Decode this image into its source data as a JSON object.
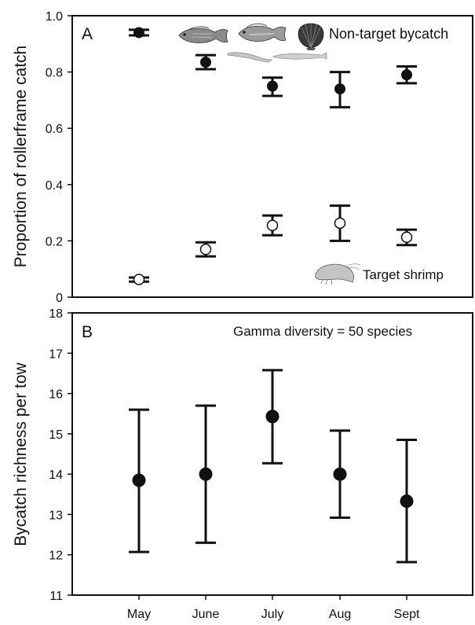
{
  "chart_data": [
    {
      "type": "scatter",
      "panel_label": "A",
      "ylabel": "Proportion of rollerframe catch",
      "ylim": [
        0,
        1.0
      ],
      "yticks": [
        "0",
        "0.2",
        "0.4",
        "0.6",
        "0.8",
        "1.0"
      ],
      "categories": [
        "May",
        "June",
        "July",
        "Aug",
        "Sept"
      ],
      "series": [
        {
          "name": "Non-target bycatch",
          "marker": "filled-circle",
          "values": [
            0.94,
            0.835,
            0.75,
            0.74,
            0.79
          ],
          "lower": [
            0.93,
            0.81,
            0.715,
            0.675,
            0.76
          ],
          "upper": [
            0.95,
            0.86,
            0.78,
            0.8,
            0.82
          ]
        },
        {
          "name": "Target shrimp",
          "marker": "open-circle",
          "values": [
            0.063,
            0.17,
            0.255,
            0.263,
            0.213
          ],
          "lower": [
            0.055,
            0.145,
            0.22,
            0.2,
            0.185
          ],
          "upper": [
            0.07,
            0.195,
            0.29,
            0.325,
            0.24
          ]
        }
      ],
      "legend_placement": "in-plot labels with species illustrations",
      "grid": false
    },
    {
      "type": "scatter",
      "panel_label": "B",
      "ylabel": "Bycatch richness per tow",
      "annotation": "Gamma diversity = 50 species",
      "ylim": [
        11,
        18
      ],
      "yticks": [
        "11",
        "12",
        "13",
        "14",
        "15",
        "16",
        "17",
        "18"
      ],
      "categories": [
        "May",
        "June",
        "July",
        "Aug",
        "Sept"
      ],
      "xticks": [
        "May",
        "June",
        "July",
        "Aug",
        "Sept"
      ],
      "series": [
        {
          "marker": "filled-circle",
          "values": [
            13.85,
            14.0,
            15.43,
            14.0,
            13.33
          ],
          "lower": [
            12.07,
            12.3,
            14.27,
            12.92,
            11.82
          ],
          "upper": [
            15.6,
            15.7,
            16.58,
            15.08,
            14.85
          ]
        }
      ],
      "grid": false
    }
  ],
  "colors": {
    "ink": "#111111",
    "marker_open": "#ffffff"
  },
  "icons": [
    "snapper-fish-icon",
    "grunt-fish-icon",
    "scallop-shell-icon",
    "pipefish-icon",
    "lizardfish-icon",
    "shrimp-icon"
  ]
}
